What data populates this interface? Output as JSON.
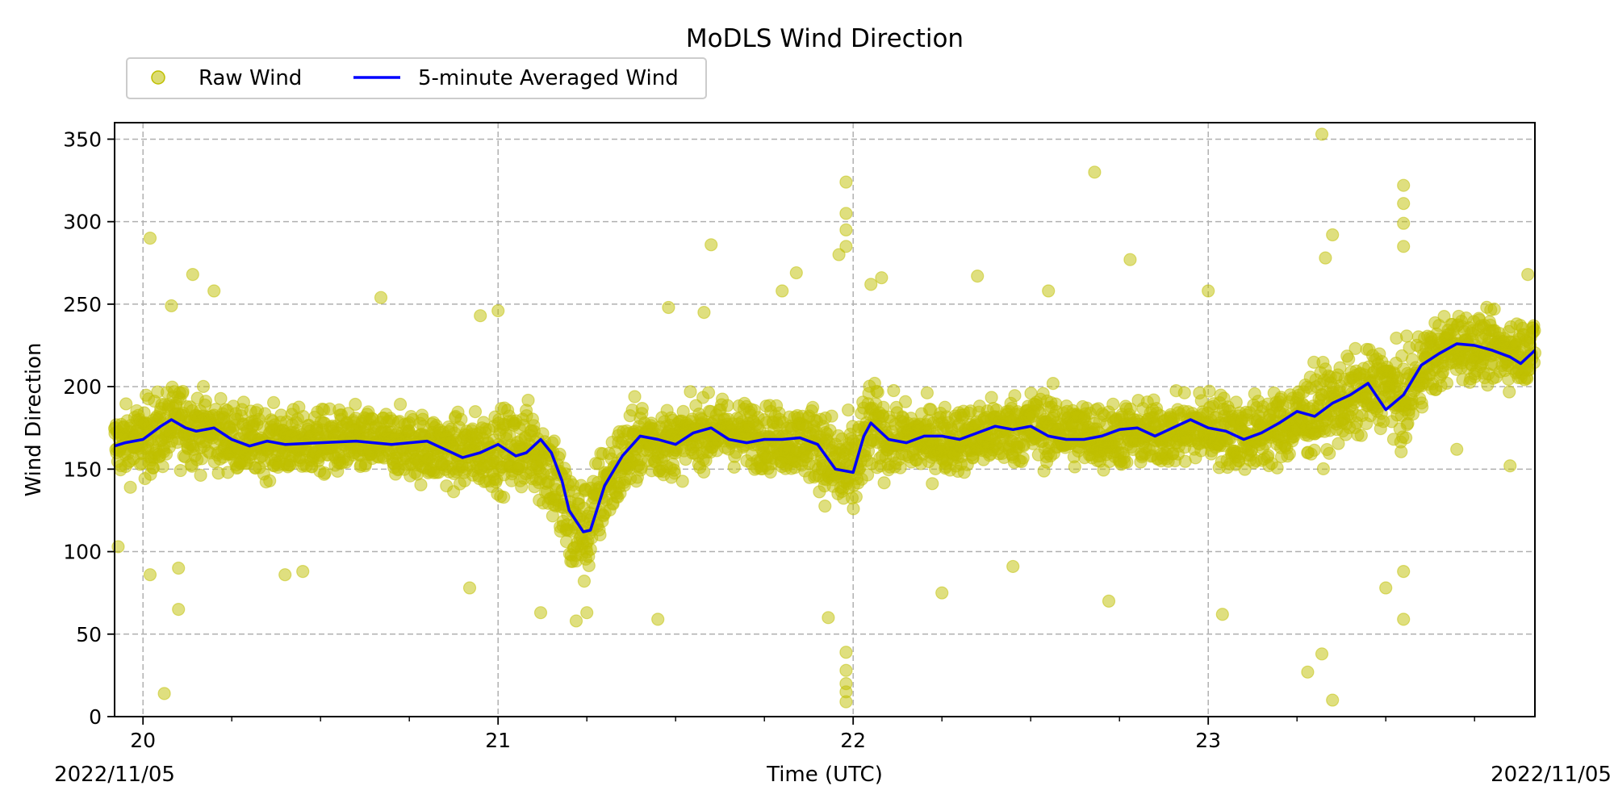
{
  "chart_data": {
    "type": "scatter",
    "title": "MoDLS Wind Direction",
    "xlabel": "Time (UTC)",
    "ylabel": "Wind Direction",
    "x_unit": "hour (UTC, 2022/11/05)",
    "xlim": [
      19.92,
      23.92
    ],
    "ylim": [
      0,
      360
    ],
    "x_ticks": [
      20,
      21,
      22,
      23
    ],
    "x_tick_labels": [
      "20",
      "21",
      "22",
      "23"
    ],
    "x_minor_step": 0.25,
    "y_ticks": [
      0,
      50,
      100,
      150,
      200,
      250,
      300,
      350
    ],
    "y_tick_labels": [
      "0",
      "50",
      "100",
      "150",
      "200",
      "250",
      "300",
      "350"
    ],
    "date_label_start": "2022/11/05",
    "date_label_end": "2022/11/05",
    "grid": true,
    "legend_position": "top-left, above plot",
    "legend": [
      {
        "label": "Raw Wind",
        "marker": "circle",
        "color": "#bfbf00"
      },
      {
        "label": "5-minute Averaged Wind",
        "marker": "line",
        "color": "#0000ff"
      }
    ],
    "series": [
      {
        "name": "5-minute Averaged Wind",
        "type": "line",
        "color": "#0000ff",
        "x": [
          19.92,
          19.95,
          20.0,
          20.05,
          20.08,
          20.12,
          20.15,
          20.2,
          20.25,
          20.3,
          20.35,
          20.4,
          20.5,
          20.6,
          20.7,
          20.8,
          20.85,
          20.9,
          20.95,
          21.0,
          21.05,
          21.08,
          21.12,
          21.15,
          21.18,
          21.2,
          21.24,
          21.26,
          21.3,
          21.35,
          21.4,
          21.45,
          21.5,
          21.55,
          21.6,
          21.65,
          21.7,
          21.75,
          21.8,
          21.85,
          21.9,
          21.95,
          22.0,
          22.03,
          22.05,
          22.08,
          22.1,
          22.15,
          22.2,
          22.25,
          22.3,
          22.35,
          22.4,
          22.45,
          22.5,
          22.55,
          22.6,
          22.65,
          22.7,
          22.75,
          22.8,
          22.85,
          22.9,
          22.95,
          23.0,
          23.05,
          23.1,
          23.15,
          23.2,
          23.25,
          23.3,
          23.35,
          23.4,
          23.45,
          23.5,
          23.55,
          23.6,
          23.65,
          23.7,
          23.75,
          23.8,
          23.85,
          23.88,
          23.92
        ],
        "y": [
          164,
          166,
          168,
          176,
          180,
          175,
          173,
          175,
          168,
          164,
          167,
          165,
          166,
          167,
          165,
          167,
          162,
          157,
          160,
          165,
          158,
          160,
          168,
          160,
          143,
          125,
          112,
          113,
          140,
          158,
          170,
          168,
          165,
          172,
          175,
          168,
          166,
          168,
          168,
          169,
          165,
          150,
          148,
          170,
          178,
          172,
          168,
          166,
          170,
          170,
          168,
          172,
          176,
          174,
          176,
          170,
          168,
          168,
          170,
          174,
          175,
          170,
          175,
          180,
          175,
          173,
          168,
          172,
          178,
          185,
          182,
          190,
          195,
          202,
          186,
          195,
          213,
          220,
          226,
          225,
          222,
          218,
          214,
          222
        ]
      },
      {
        "name": "Raw Wind",
        "type": "scatter",
        "color": "#bfbf00",
        "note_band": "dense cloud of points following the averaged line, typical spread about +/-25",
        "band_x": [
          19.92,
          20.0,
          20.1,
          20.3,
          20.5,
          20.7,
          20.9,
          21.0,
          21.1,
          21.15,
          21.2,
          21.25,
          21.3,
          21.4,
          21.5,
          21.6,
          21.8,
          21.9,
          21.95,
          22.0,
          22.05,
          22.1,
          22.3,
          22.5,
          22.7,
          22.9,
          23.0,
          23.1,
          23.2,
          23.3,
          23.4,
          23.5,
          23.55,
          23.6,
          23.7,
          23.8,
          23.92
        ],
        "band_center": [
          165,
          168,
          178,
          166,
          166,
          166,
          160,
          162,
          163,
          150,
          118,
          112,
          140,
          168,
          166,
          174,
          168,
          166,
          150,
          148,
          176,
          168,
          168,
          176,
          170,
          172,
          176,
          170,
          175,
          185,
          192,
          202,
          188,
          212,
          226,
          222,
          222
        ],
        "band_spread": [
          25,
          30,
          30,
          25,
          25,
          25,
          28,
          30,
          35,
          40,
          45,
          40,
          35,
          30,
          25,
          25,
          25,
          30,
          40,
          40,
          35,
          28,
          25,
          28,
          25,
          25,
          28,
          28,
          30,
          32,
          32,
          30,
          35,
          30,
          25,
          25,
          25
        ],
        "outliers": [
          {
            "x": 19.93,
            "y": 103
          },
          {
            "x": 20.02,
            "y": 86
          },
          {
            "x": 20.02,
            "y": 290
          },
          {
            "x": 20.06,
            "y": 14
          },
          {
            "x": 20.1,
            "y": 65
          },
          {
            "x": 20.14,
            "y": 268
          },
          {
            "x": 20.2,
            "y": 258
          },
          {
            "x": 20.08,
            "y": 249
          },
          {
            "x": 20.1,
            "y": 90
          },
          {
            "x": 20.4,
            "y": 86
          },
          {
            "x": 20.45,
            "y": 88
          },
          {
            "x": 20.67,
            "y": 254
          },
          {
            "x": 20.95,
            "y": 243
          },
          {
            "x": 20.92,
            "y": 78
          },
          {
            "x": 21.0,
            "y": 246
          },
          {
            "x": 21.12,
            "y": 63
          },
          {
            "x": 21.22,
            "y": 58
          },
          {
            "x": 21.25,
            "y": 63
          },
          {
            "x": 21.45,
            "y": 59
          },
          {
            "x": 21.48,
            "y": 248
          },
          {
            "x": 21.6,
            "y": 286
          },
          {
            "x": 21.58,
            "y": 245
          },
          {
            "x": 21.8,
            "y": 258
          },
          {
            "x": 21.84,
            "y": 269
          },
          {
            "x": 21.93,
            "y": 60
          },
          {
            "x": 21.96,
            "y": 280
          },
          {
            "x": 21.98,
            "y": 324
          },
          {
            "x": 21.98,
            "y": 305
          },
          {
            "x": 21.98,
            "y": 295
          },
          {
            "x": 21.98,
            "y": 285
          },
          {
            "x": 21.98,
            "y": 39
          },
          {
            "x": 21.98,
            "y": 28
          },
          {
            "x": 21.98,
            "y": 20
          },
          {
            "x": 21.98,
            "y": 15
          },
          {
            "x": 21.98,
            "y": 9
          },
          {
            "x": 22.05,
            "y": 262
          },
          {
            "x": 22.08,
            "y": 266
          },
          {
            "x": 22.25,
            "y": 75
          },
          {
            "x": 22.35,
            "y": 267
          },
          {
            "x": 22.45,
            "y": 91
          },
          {
            "x": 22.55,
            "y": 258
          },
          {
            "x": 22.68,
            "y": 330
          },
          {
            "x": 22.72,
            "y": 70
          },
          {
            "x": 22.78,
            "y": 277
          },
          {
            "x": 23.04,
            "y": 62
          },
          {
            "x": 23.0,
            "y": 258
          },
          {
            "x": 23.28,
            "y": 27
          },
          {
            "x": 23.32,
            "y": 38
          },
          {
            "x": 23.35,
            "y": 10
          },
          {
            "x": 23.32,
            "y": 353
          },
          {
            "x": 23.35,
            "y": 292
          },
          {
            "x": 23.33,
            "y": 278
          },
          {
            "x": 23.5,
            "y": 78
          },
          {
            "x": 23.55,
            "y": 59
          },
          {
            "x": 23.55,
            "y": 88
          },
          {
            "x": 23.55,
            "y": 322
          },
          {
            "x": 23.55,
            "y": 311
          },
          {
            "x": 23.55,
            "y": 299
          },
          {
            "x": 23.55,
            "y": 285
          },
          {
            "x": 23.7,
            "y": 162
          },
          {
            "x": 23.85,
            "y": 152
          },
          {
            "x": 23.9,
            "y": 268
          }
        ]
      }
    ]
  }
}
